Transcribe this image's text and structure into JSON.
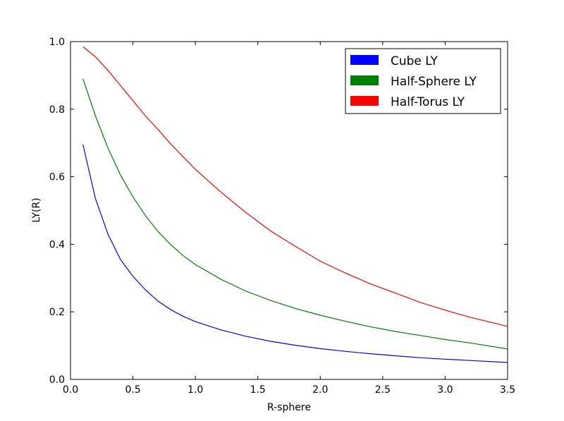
{
  "chart_data": {
    "type": "line",
    "title": "",
    "xlabel": "R-sphere",
    "ylabel": "LY(R)",
    "xlim": [
      0.0,
      3.5
    ],
    "ylim": [
      0.0,
      1.0
    ],
    "grid": false,
    "legend_position": "top-right",
    "x_ticks": [
      "0.0",
      "0.5",
      "1.0",
      "1.5",
      "2.0",
      "2.5",
      "3.0",
      "3.5"
    ],
    "y_ticks": [
      "0.0",
      "0.2",
      "0.4",
      "0.6",
      "0.8",
      "1.0"
    ],
    "x": [
      0.1,
      0.2,
      0.3,
      0.4,
      0.5,
      0.6,
      0.7,
      0.8,
      0.9,
      1.0,
      1.2,
      1.4,
      1.6,
      1.8,
      2.0,
      2.2,
      2.4,
      2.6,
      2.8,
      3.0,
      3.2,
      3.5
    ],
    "series": [
      {
        "name": "Cube LY",
        "color": "#0000ff",
        "values": [
          0.695,
          0.535,
          0.43,
          0.355,
          0.305,
          0.265,
          0.232,
          0.207,
          0.187,
          0.171,
          0.147,
          0.128,
          0.113,
          0.101,
          0.091,
          0.083,
          0.076,
          0.07,
          0.064,
          0.06,
          0.056,
          0.05
        ]
      },
      {
        "name": "Half-Sphere LY",
        "color": "#008000",
        "values": [
          0.89,
          0.78,
          0.685,
          0.605,
          0.54,
          0.485,
          0.438,
          0.4,
          0.367,
          0.34,
          0.297,
          0.262,
          0.234,
          0.21,
          0.19,
          0.172,
          0.156,
          0.142,
          0.13,
          0.118,
          0.108,
          0.09
        ]
      },
      {
        "name": "Half-Torus LY",
        "color": "#ff0000",
        "values": [
          0.985,
          0.955,
          0.915,
          0.87,
          0.825,
          0.78,
          0.74,
          0.698,
          0.66,
          0.622,
          0.556,
          0.495,
          0.44,
          0.394,
          0.35,
          0.315,
          0.283,
          0.256,
          0.228,
          0.205,
          0.184,
          0.157
        ]
      }
    ]
  }
}
